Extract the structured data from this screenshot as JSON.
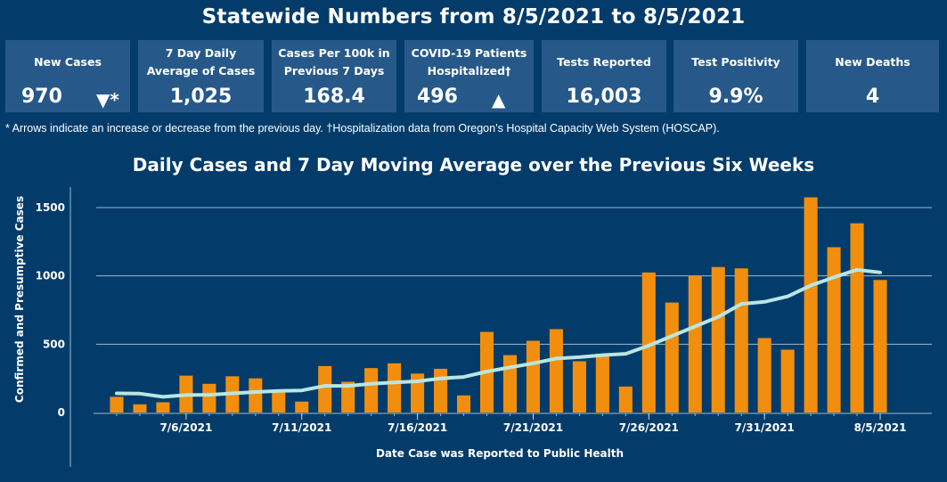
{
  "header": {
    "title": "Statewide Numbers from 8/5/2021 to 8/5/2021"
  },
  "cards": [
    {
      "label": "New Cases",
      "value": "970",
      "arrow": "▼*"
    },
    {
      "label": "7 Day Daily Average of Cases",
      "value": "1,025"
    },
    {
      "label": "Cases Per 100k in Previous 7 Days",
      "value": "168.4"
    },
    {
      "label": "COVID-19 Patients Hospitalized†",
      "value": "496",
      "arrow": "▲"
    },
    {
      "label": "Tests Reported",
      "value": "16,003"
    },
    {
      "label": "Test Positivity",
      "value": "9.9%"
    },
    {
      "label": "New Deaths",
      "value": "4"
    }
  ],
  "footnote": "* Arrows indicate an increase or decrease from the previous day. †Hospitalization data from Oregon’s Hospital Capacity Web System (HOSCAP).",
  "colors": {
    "background": "#033c6b",
    "card": "#26598a",
    "bar": "#f28e0e",
    "line": "#b9e6e3"
  },
  "chart_data": {
    "type": "bar",
    "title": "Daily Cases and 7 Day Moving Average over the Previous Six Weeks",
    "xlabel": "Date Case was Reported to Public Health",
    "ylabel": "Confirmed and Presumptive Cases",
    "ylim": [
      0,
      1650
    ],
    "yticks": [
      0,
      500,
      1000,
      1500
    ],
    "grid": true,
    "x_tick_labels": [
      "7/6/2021",
      "7/11/2021",
      "7/16/2021",
      "7/21/2021",
      "7/26/2021",
      "7/31/2021",
      "8/5/2021"
    ],
    "x_tick_dates": [
      "7/6",
      "7/11",
      "7/16",
      "7/21",
      "7/26",
      "7/31",
      "8/5"
    ],
    "categories": [
      "7/3",
      "7/4",
      "7/5",
      "7/6",
      "7/7",
      "7/8",
      "7/9",
      "7/10",
      "7/11",
      "7/12",
      "7/13",
      "7/14",
      "7/15",
      "7/16",
      "7/17",
      "7/18",
      "7/19",
      "7/20",
      "7/21",
      "7/22",
      "7/23",
      "7/24",
      "7/25",
      "7/26",
      "7/27",
      "7/28",
      "7/29",
      "7/30",
      "7/31",
      "8/1",
      "8/2",
      "8/3",
      "8/4",
      "8/5"
    ],
    "series": [
      {
        "type": "bar",
        "values": [
          115,
          60,
          75,
          270,
          210,
          265,
          250,
          165,
          80,
          340,
          225,
          325,
          360,
          285,
          320,
          125,
          590,
          420,
          525,
          610,
          375,
          430,
          190,
          1025,
          805,
          1000,
          1065,
          1055,
          545,
          460,
          1575,
          1210,
          1385,
          970
        ]
      },
      {
        "type": "line",
        "values": [
          140,
          138,
          115,
          128,
          130,
          140,
          150,
          158,
          162,
          195,
          195,
          210,
          220,
          228,
          250,
          260,
          300,
          330,
          360,
          395,
          405,
          420,
          430,
          490,
          560,
          630,
          700,
          795,
          810,
          850,
          930,
          990,
          1045,
          1025
        ]
      }
    ]
  }
}
